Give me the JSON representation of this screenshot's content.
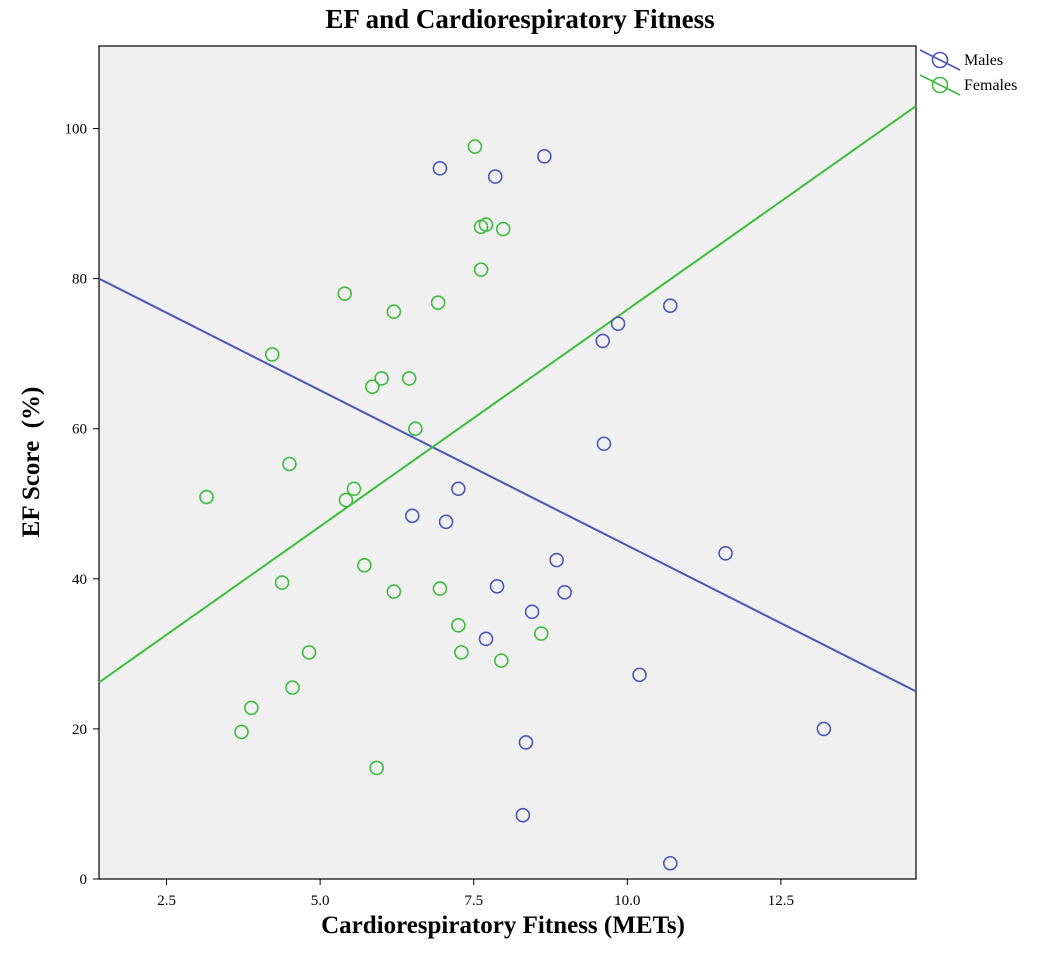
{
  "chart_data": {
    "type": "scatter",
    "title": "EF and Cardiorespiratory Fitness",
    "xlabel": "Cardiorespiratory Fitness (METs)",
    "ylabel": "EF Score  (%)",
    "xlim": [
      1.4,
      14.7
    ],
    "ylim": [
      0,
      111
    ],
    "x_ticks": [
      2.5,
      5.0,
      7.5,
      10.0,
      12.5
    ],
    "x_tick_labels": [
      "2.5",
      "5.0",
      "7.5",
      "10.0",
      "12.5"
    ],
    "y_ticks": [
      0,
      20,
      40,
      60,
      80,
      100
    ],
    "y_tick_labels": [
      "0",
      "20",
      "40",
      "60",
      "80",
      "100"
    ],
    "grid": false,
    "legend_position": "top-right outside",
    "series": [
      {
        "name": "Males",
        "color": "#4a55b8",
        "points": [
          [
            6.95,
            94.7
          ],
          [
            7.85,
            93.6
          ],
          [
            8.65,
            96.3
          ],
          [
            10.7,
            76.4
          ],
          [
            9.85,
            74.0
          ],
          [
            9.6,
            71.7
          ],
          [
            9.62,
            58.0
          ],
          [
            7.25,
            52.0
          ],
          [
            6.5,
            48.4
          ],
          [
            7.05,
            47.6
          ],
          [
            8.85,
            42.5
          ],
          [
            11.6,
            43.4
          ],
          [
            7.88,
            39.0
          ],
          [
            8.98,
            38.2
          ],
          [
            8.45,
            35.6
          ],
          [
            7.7,
            32.0
          ],
          [
            10.2,
            27.2
          ],
          [
            13.2,
            20.0
          ],
          [
            8.35,
            18.2
          ],
          [
            8.3,
            8.5
          ],
          [
            10.7,
            2.1
          ]
        ],
        "fit_line": [
          [
            1.4,
            80.0
          ],
          [
            14.7,
            25.0
          ]
        ]
      },
      {
        "name": "Females",
        "color": "#3dbb3d",
        "points": [
          [
            7.52,
            97.6
          ],
          [
            7.62,
            86.9
          ],
          [
            7.7,
            87.2
          ],
          [
            7.98,
            86.6
          ],
          [
            7.62,
            81.2
          ],
          [
            5.4,
            78.0
          ],
          [
            6.92,
            76.8
          ],
          [
            6.2,
            75.6
          ],
          [
            4.22,
            69.9
          ],
          [
            6.0,
            66.7
          ],
          [
            6.45,
            66.7
          ],
          [
            5.85,
            65.6
          ],
          [
            6.55,
            60.0
          ],
          [
            4.5,
            55.3
          ],
          [
            3.15,
            50.9
          ],
          [
            5.55,
            52.0
          ],
          [
            5.42,
            50.5
          ],
          [
            5.72,
            41.8
          ],
          [
            4.38,
            39.5
          ],
          [
            6.2,
            38.3
          ],
          [
            6.95,
            38.7
          ],
          [
            7.25,
            33.8
          ],
          [
            8.6,
            32.7
          ],
          [
            7.3,
            30.2
          ],
          [
            7.95,
            29.1
          ],
          [
            4.82,
            30.2
          ],
          [
            4.55,
            25.5
          ],
          [
            3.88,
            22.8
          ],
          [
            3.72,
            19.6
          ],
          [
            5.92,
            14.8
          ]
        ],
        "fit_line": [
          [
            1.4,
            26.2
          ],
          [
            14.7,
            103.0
          ]
        ]
      }
    ]
  },
  "colors": {
    "plot_background": "#f0f0f0",
    "axis": "#000000"
  }
}
